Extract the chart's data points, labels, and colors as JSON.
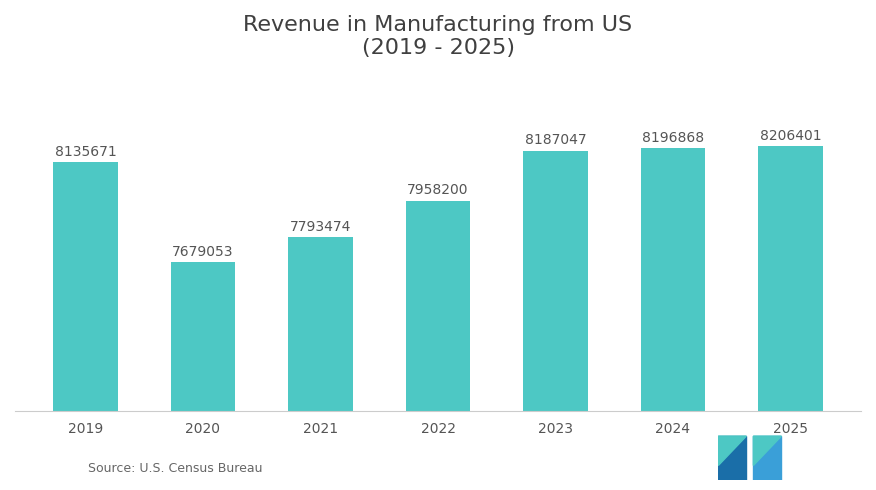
{
  "title": "Revenue in Manufacturing from US\n(2019 - 2025)",
  "categories": [
    "2019",
    "2020",
    "2021",
    "2022",
    "2023",
    "2024",
    "2025"
  ],
  "values": [
    8135671,
    7679053,
    7793474,
    7958200,
    8187047,
    8196868,
    8206401
  ],
  "bar_color": "#4DC8C4",
  "background_color": "#ffffff",
  "title_color": "#404040",
  "label_color": "#555555",
  "source_text": "Source: U.S. Census Bureau",
  "ylim": [
    7000000,
    8500000
  ],
  "title_fontsize": 16,
  "label_fontsize": 10,
  "source_fontsize": 9,
  "tick_fontsize": 10,
  "logo_color_dark": "#1a6ea8",
  "logo_color_teal": "#4DC8C4",
  "logo_color_mid": "#3a9fd8"
}
